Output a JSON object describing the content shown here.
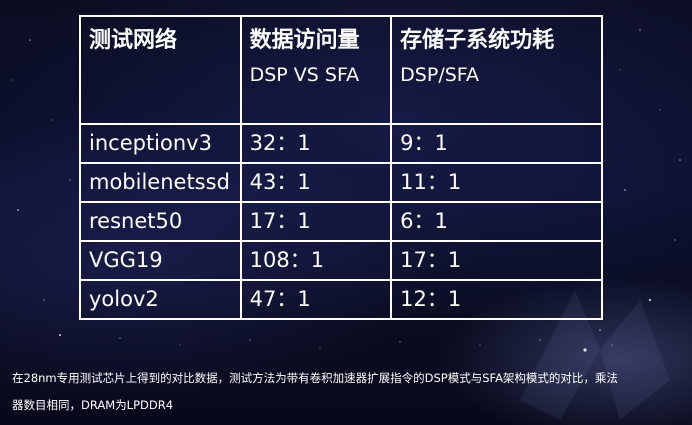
{
  "table": {
    "headers": [
      {
        "main": "测试网络",
        "sub": ""
      },
      {
        "main": "数据访问量",
        "sub": "DSP VS SFA"
      },
      {
        "main": "存储子系统功耗",
        "sub": "DSP/SFA"
      }
    ],
    "rows": [
      {
        "network": "inceptionv3",
        "data_access": "32：1",
        "power": "9：1"
      },
      {
        "network": "mobilenetssd",
        "data_access": "43：1",
        "power": "11：1"
      },
      {
        "network": "resnet50",
        "data_access": "17：1",
        "power": "6：1"
      },
      {
        "network": "VGG19",
        "data_access": "108：1",
        "power": "17：1"
      },
      {
        "network": "yolov2",
        "data_access": "47：1",
        "power": "12：1"
      }
    ]
  },
  "footnote": {
    "line1": "在28nm专用测试芯片上得到的对比数据，测试方法为带有卷积加速器扩展指令的DSP模式与SFA架构模式的对比，乘法",
    "line2": "器数目相同，DRAM为LPDDR4"
  },
  "colors": {
    "background": "#0b0d22",
    "text": "#ffffff",
    "border": "#ffffff"
  }
}
